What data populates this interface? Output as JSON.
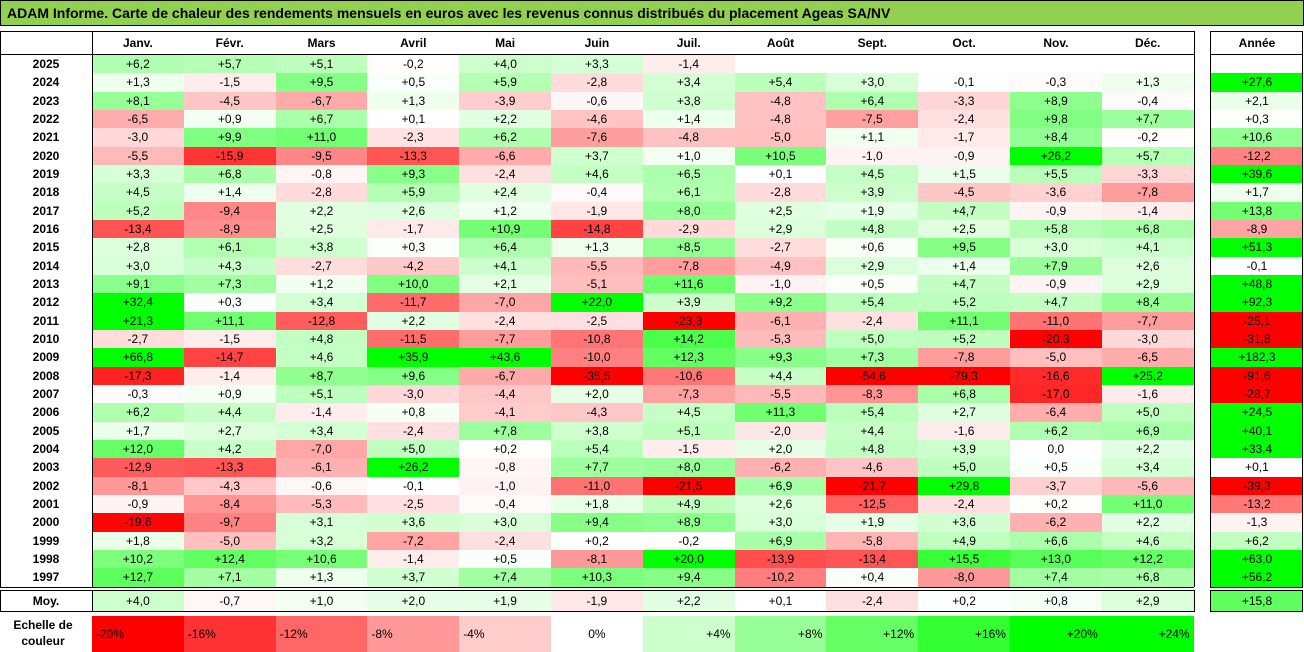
{
  "title": "ADAM Informe. Carte de chaleur des rendements mensuels en euros avec les revenus connus distribués du placement Ageas SA/NV",
  "chart_data": {
    "type": "heatmap",
    "columns": [
      "Janv.",
      "Févr.",
      "Mars",
      "Avril",
      "Mai",
      "Juin",
      "Juil.",
      "Août",
      "Sept.",
      "Oct.",
      "Nov.",
      "Déc."
    ],
    "year_header": "Année",
    "rows": [
      {
        "year": "2025",
        "values": [
          "+6,2",
          "+5,7",
          "+5,1",
          "-0,2",
          "+4,0",
          "+3,3",
          "-1,4",
          "",
          "",
          "",
          "",
          ""
        ],
        "annual": ""
      },
      {
        "year": "2024",
        "values": [
          "+1,3",
          "-1,5",
          "+9,5",
          "+0,5",
          "+5,9",
          "-2,8",
          "+3,4",
          "+5,4",
          "+3,0",
          "-0,1",
          "-0,3",
          "+1,3"
        ],
        "annual": "+27,6"
      },
      {
        "year": "2023",
        "values": [
          "+8,1",
          "-4,5",
          "-6,7",
          "+1,3",
          "-3,9",
          "-0,6",
          "+3,8",
          "-4,8",
          "+6,4",
          "-3,3",
          "+8,9",
          "-0,4"
        ],
        "annual": "+2,1"
      },
      {
        "year": "2022",
        "values": [
          "-6,5",
          "+0,9",
          "+6,7",
          "+0,1",
          "+2,2",
          "-4,6",
          "+1,4",
          "-4,8",
          "-7,5",
          "-2,4",
          "+9,8",
          "+7,7"
        ],
        "annual": "+0,3"
      },
      {
        "year": "2021",
        "values": [
          "-3,0",
          "+9,9",
          "+11,0",
          "-2,3",
          "+6,2",
          "-7,6",
          "-4,8",
          "-5,0",
          "+1,1",
          "-1,7",
          "+8,4",
          "-0,2"
        ],
        "annual": "+10,6"
      },
      {
        "year": "2020",
        "values": [
          "-5,5",
          "-15,9",
          "-9,5",
          "-13,3",
          "-6,6",
          "+3,7",
          "+1,0",
          "+10,5",
          "-1,0",
          "-0,9",
          "+26,2",
          "+5,7"
        ],
        "annual": "-12,2"
      },
      {
        "year": "2019",
        "values": [
          "+3,3",
          "+6,8",
          "-0,8",
          "+9,3",
          "-2,4",
          "+4,6",
          "+6,5",
          "+0,1",
          "+4,5",
          "+1,5",
          "+5,5",
          "-3,3"
        ],
        "annual": "+39,6"
      },
      {
        "year": "2018",
        "values": [
          "+4,5",
          "+1,4",
          "-2,8",
          "+5,9",
          "+2,4",
          "-0,4",
          "+6,1",
          "-2,8",
          "+3,9",
          "-4,5",
          "-3,6",
          "-7,8"
        ],
        "annual": "+1,7"
      },
      {
        "year": "2017",
        "values": [
          "+5,2",
          "-9,4",
          "+2,2",
          "+2,6",
          "+1,2",
          "-1,9",
          "+8,0",
          "+2,5",
          "+1,9",
          "+4,7",
          "-0,9",
          "-1,4"
        ],
        "annual": "+13,8"
      },
      {
        "year": "2016",
        "values": [
          "-13,4",
          "-8,9",
          "+2,5",
          "-1,7",
          "+10,9",
          "-14,8",
          "-2,9",
          "+2,9",
          "+4,8",
          "+2,5",
          "+5,8",
          "+6,8"
        ],
        "annual": "-8,9"
      },
      {
        "year": "2015",
        "values": [
          "+2,8",
          "+6,1",
          "+3,8",
          "+0,3",
          "+6,4",
          "+1,3",
          "+8,5",
          "-2,7",
          "+0,6",
          "+9,5",
          "+3,0",
          "+4,1"
        ],
        "annual": "+51,3"
      },
      {
        "year": "2014",
        "values": [
          "+3,0",
          "+4,3",
          "-2,7",
          "-4,2",
          "+4,1",
          "-5,5",
          "-7,8",
          "-4,9",
          "+2,9",
          "+1,4",
          "+7,9",
          "+2,6"
        ],
        "annual": "-0,1"
      },
      {
        "year": "2013",
        "values": [
          "+9,1",
          "+7,3",
          "+1,2",
          "+10,0",
          "+2,1",
          "-5,1",
          "+11,6",
          "-1,0",
          "+0,5",
          "+4,7",
          "-0,9",
          "+2,9"
        ],
        "annual": "+48,8"
      },
      {
        "year": "2012",
        "values": [
          "+32,4",
          "+0,3",
          "+3,4",
          "-11,7",
          "-7,0",
          "+22,0",
          "+3,9",
          "+9,2",
          "+5,4",
          "+5,2",
          "+4,7",
          "+8,4"
        ],
        "annual": "+92,3"
      },
      {
        "year": "2011",
        "values": [
          "+21,3",
          "+11,1",
          "-12,8",
          "+2,2",
          "-2,4",
          "-2,5",
          "-23,3",
          "-6,1",
          "-2,4",
          "+11,1",
          "-11,0",
          "-7,7"
        ],
        "annual": "-25,1"
      },
      {
        "year": "2010",
        "values": [
          "-2,7",
          "-1,5",
          "+4,8",
          "-11,5",
          "-7,7",
          "-10,8",
          "+14,2",
          "-5,3",
          "+5,0",
          "+5,2",
          "-20,3",
          "-3,0"
        ],
        "annual": "-31,8"
      },
      {
        "year": "2009",
        "values": [
          "+66,8",
          "-14,7",
          "+4,6",
          "+35,9",
          "+43,6",
          "-10,0",
          "+12,3",
          "+9,3",
          "+7,3",
          "-7,8",
          "-5,0",
          "-6,5"
        ],
        "annual": "+182,3"
      },
      {
        "year": "2008",
        "values": [
          "-17,3",
          "-1,4",
          "+8,7",
          "+9,6",
          "-6,7",
          "-35,5",
          "-10,6",
          "+4,4",
          "-54,6",
          "-79,3",
          "-16,6",
          "+25,2"
        ],
        "annual": "-91,6"
      },
      {
        "year": "2007",
        "values": [
          "-0,3",
          "+0,9",
          "+5,1",
          "-3,0",
          "-4,4",
          "+2,0",
          "-7,3",
          "-5,5",
          "-8,3",
          "+6,8",
          "-17,0",
          "-1,6"
        ],
        "annual": "-28,7"
      },
      {
        "year": "2006",
        "values": [
          "+6,2",
          "+4,4",
          "-1,4",
          "+0,8",
          "-4,1",
          "-4,3",
          "+4,5",
          "+11,3",
          "+5,4",
          "+2,7",
          "-6,4",
          "+5,0"
        ],
        "annual": "+24,5"
      },
      {
        "year": "2005",
        "values": [
          "+1,7",
          "+2,7",
          "+3,4",
          "-2,4",
          "+7,8",
          "+3,8",
          "+5,1",
          "-2,0",
          "+4,4",
          "-1,6",
          "+6,2",
          "+6,9"
        ],
        "annual": "+40,1"
      },
      {
        "year": "2004",
        "values": [
          "+12,0",
          "+4,2",
          "-7,0",
          "+5,0",
          "+0,2",
          "+5,4",
          "-1,5",
          "+2,0",
          "+4,8",
          "+3,9",
          "0,0",
          "+2,2"
        ],
        "annual": "+33,4"
      },
      {
        "year": "2003",
        "values": [
          "-12,9",
          "-13,3",
          "-6,1",
          "+26,2",
          "-0,8",
          "+7,7",
          "+8,0",
          "-6,2",
          "-4,6",
          "+5,0",
          "+0,5",
          "+3,4"
        ],
        "annual": "+0,1"
      },
      {
        "year": "2002",
        "values": [
          "-8,1",
          "-4,3",
          "-0,6",
          "-0,1",
          "-1,0",
          "-11,0",
          "-21,5",
          "+6,9",
          "-21,7",
          "+29,8",
          "-3,7",
          "-5,6"
        ],
        "annual": "-39,3"
      },
      {
        "year": "2001",
        "values": [
          "-0,9",
          "-8,4",
          "-5,3",
          "-2,5",
          "-0,4",
          "+1,8",
          "+4,9",
          "+2,6",
          "-12,5",
          "-2,4",
          "+0,2",
          "+11,0"
        ],
        "annual": "-13,2"
      },
      {
        "year": "2000",
        "values": [
          "-19,6",
          "-9,7",
          "+3,1",
          "+3,6",
          "+3,0",
          "+9,4",
          "+8,9",
          "+3,0",
          "+1,9",
          "+3,6",
          "-6,2",
          "+2,2"
        ],
        "annual": "-1,3"
      },
      {
        "year": "1999",
        "values": [
          "+1,8",
          "-5,0",
          "+3,2",
          "-7,2",
          "-2,4",
          "+0,2",
          "-0,2",
          "+6,9",
          "-5,8",
          "+4,9",
          "+6,6",
          "+4,6"
        ],
        "annual": "+6,2"
      },
      {
        "year": "1998",
        "values": [
          "+10,2",
          "+12,4",
          "+10,6",
          "-1,4",
          "+0,5",
          "-8,1",
          "+20,0",
          "-13,9",
          "-13,4",
          "+15,5",
          "+13,0",
          "+12,2"
        ],
        "annual": "+63,0"
      },
      {
        "year": "1997",
        "values": [
          "+12,7",
          "+7,1",
          "+1,3",
          "+3,7",
          "+7,4",
          "+10,3",
          "+9,4",
          "-10,2",
          "+0,4",
          "-8,0",
          "+7,4",
          "+6,8"
        ],
        "annual": "+56,2"
      }
    ],
    "average": {
      "label": "Moy.",
      "values": [
        "+4,0",
        "-0,7",
        "+1,0",
        "+2,0",
        "+1,9",
        "-1,9",
        "+2,2",
        "+0,1",
        "-2,4",
        "+0,2",
        "+0,8",
        "+2,9"
      ],
      "annual": "+15,8"
    },
    "scale": {
      "label": "Echelle de couleur",
      "steps": [
        "-20%",
        "-16%",
        "-12%",
        "-8%",
        "-4%",
        "0%",
        "+4%",
        "+8%",
        "+12%",
        "+16%",
        "+20%",
        "+24%"
      ],
      "step_values": [
        -20,
        -16,
        -12,
        -8,
        -4,
        0,
        4,
        8,
        12,
        16,
        20,
        24
      ]
    },
    "colors": {
      "negative_max": "#ff0000",
      "neutral": "#ffffff",
      "positive_max": "#00ff00",
      "title_bg": "#92d050"
    }
  }
}
